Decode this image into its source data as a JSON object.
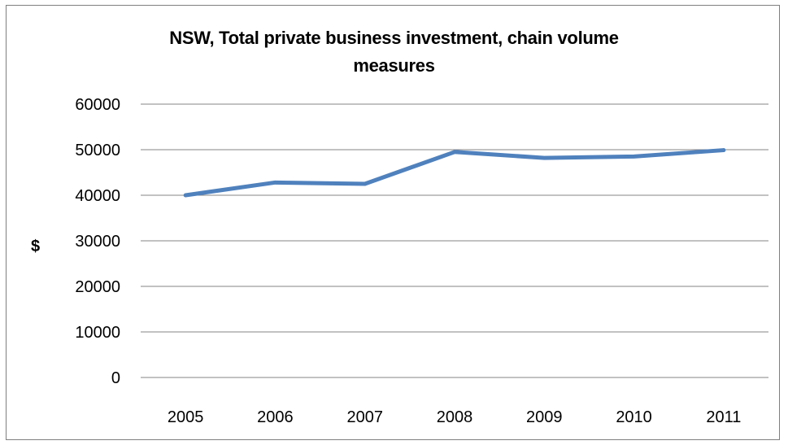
{
  "chart_data": {
    "type": "line",
    "title_lines": [
      "NSW, Total private business investment, chain volume",
      "measures"
    ],
    "xlabel": "",
    "ylabel": "$",
    "categories": [
      "2005",
      "2006",
      "2007",
      "2008",
      "2009",
      "2010",
      "2011"
    ],
    "series": [
      {
        "values": [
          40000,
          42800,
          42500,
          49500,
          48200,
          48500,
          49900
        ],
        "color": "#4f81bd"
      }
    ],
    "ylim": [
      0,
      60000
    ],
    "yticks": [
      0,
      10000,
      20000,
      30000,
      40000,
      50000,
      60000
    ],
    "grid": true,
    "legend": "none"
  }
}
